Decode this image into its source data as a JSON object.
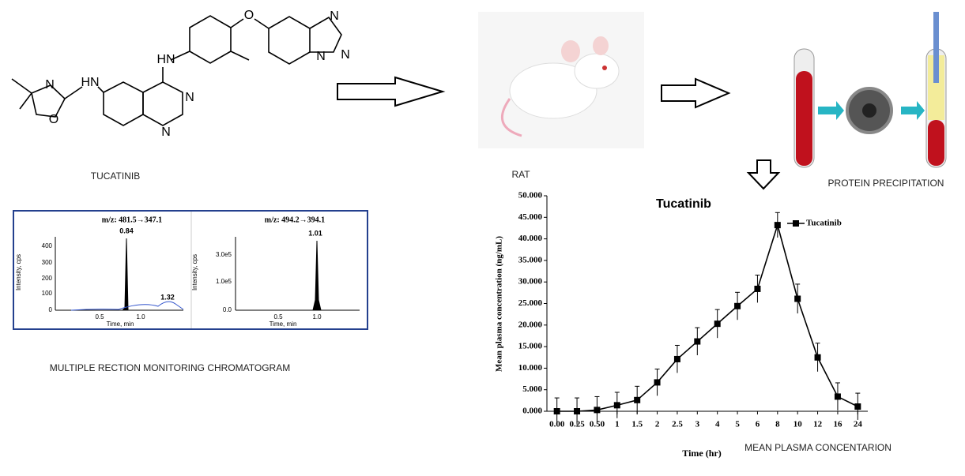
{
  "labels": {
    "drug": "TUCATINIB",
    "animal": "RAT",
    "extraction": "PROTEIN PRECIPITATION",
    "chromatogram": "MULTIPLE RECTION MONITORING CHROMATOGRAM",
    "profile": "MEAN PLASMA CONCENTARION"
  },
  "structure_atoms": [
    "N",
    "O",
    "HN",
    "HN",
    "O",
    "N",
    "N",
    "N",
    "N",
    "N"
  ],
  "chromatograms": [
    {
      "transition": "m/z: 481.5→347.1",
      "peak_labels": [
        "0.84",
        "1.32"
      ],
      "ylabel": "Intensity, cps",
      "xlabel": "Time, min",
      "yticks": [
        "400",
        "300",
        "200",
        "100",
        "0"
      ],
      "xticks": [
        "0.5",
        "1.0"
      ]
    },
    {
      "transition": "m/z: 494.2→394.1",
      "peak_labels": [
        "1.01"
      ],
      "ylabel": "Intensity, cps",
      "xlabel": "Time, min",
      "yticks": [
        "3.0e5",
        "1.0e5",
        "0.0"
      ],
      "xticks": [
        "0.5",
        "1.0"
      ]
    }
  ],
  "chart_data": {
    "type": "line",
    "title": "Tucatinib",
    "xlabel": "Time (hr)",
    "ylabel": "Mean plasma concentration (ng/mL)",
    "categories": [
      "0.00",
      "0.25",
      "0.50",
      "1",
      "1.5",
      "2",
      "2.5",
      "3",
      "4",
      "5",
      "6",
      "8",
      "10",
      "12",
      "16",
      "24"
    ],
    "series": [
      {
        "name": "Tucatinib",
        "color": "#000000",
        "values": [
          0,
          0,
          0.3,
          1.4,
          2.6,
          6.7,
          12.1,
          16.2,
          20.3,
          24.4,
          28.4,
          43.2,
          26.1,
          12.5,
          3.4,
          1.1
        ],
        "errors": [
          3.1,
          3.1,
          3.1,
          3.0,
          3.2,
          3.1,
          3.2,
          3.2,
          3.3,
          3.2,
          3.2,
          2.9,
          3.4,
          3.3,
          3.2,
          3.1
        ]
      }
    ],
    "ylim": [
      0,
      50
    ],
    "yticks": [
      {
        "value": 0,
        "label": "0.000"
      },
      {
        "value": 5,
        "label": "5.000"
      },
      {
        "value": 10,
        "label": "10.000"
      },
      {
        "value": 15,
        "label": "15.000"
      },
      {
        "value": 20,
        "label": "20.000"
      },
      {
        "value": 25,
        "label": "25.000"
      },
      {
        "value": 30,
        "label": "30.000"
      },
      {
        "value": 35,
        "label": "35.000"
      },
      {
        "value": 40,
        "label": "40.000"
      },
      {
        "value": 45,
        "label": "45.000"
      },
      {
        "value": 50,
        "label": "50.000"
      }
    ],
    "legend": "top-right"
  }
}
